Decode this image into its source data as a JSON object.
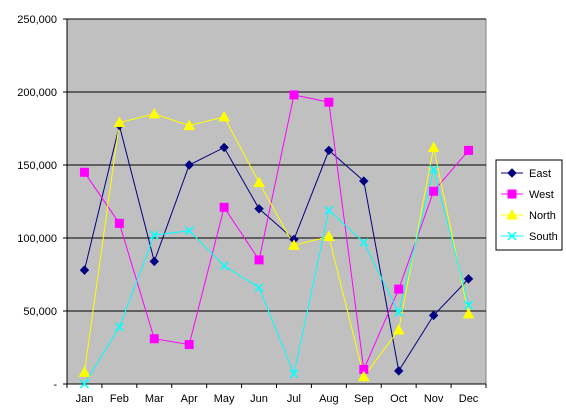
{
  "chart_data": {
    "type": "line",
    "title": "",
    "xlabel": "",
    "ylabel": "",
    "categories": [
      "Jan",
      "Feb",
      "Mar",
      "Apr",
      "May",
      "Jun",
      "Jul",
      "Aug",
      "Sep",
      "Oct",
      "Nov",
      "Dec"
    ],
    "ylim": [
      0,
      250000
    ],
    "y_ticks": [
      "-",
      "50,000",
      "100,000",
      "150,000",
      "200,000",
      "250,000"
    ],
    "y_tick_values": [
      0,
      50000,
      100000,
      150000,
      200000,
      250000
    ],
    "grid": true,
    "plot_background": "#c0c0c0",
    "legend": "right",
    "series": [
      {
        "name": "East",
        "color": "#000080",
        "marker": "diamond",
        "values": [
          78000,
          177000,
          84000,
          150000,
          162000,
          120000,
          99000,
          160000,
          139000,
          9000,
          47000,
          72000
        ]
      },
      {
        "name": "West",
        "color": "#ff00ff",
        "marker": "square",
        "values": [
          145000,
          110000,
          31000,
          27000,
          121000,
          85000,
          198000,
          193000,
          10000,
          65000,
          132000,
          160000
        ]
      },
      {
        "name": "North",
        "color": "#ffff00",
        "marker": "triangle",
        "values": [
          8000,
          179000,
          185000,
          177000,
          183000,
          138000,
          95000,
          101000,
          5000,
          37000,
          162000,
          48000
        ]
      },
      {
        "name": "South",
        "color": "#00ffff",
        "marker": "x",
        "values": [
          0,
          39000,
          102000,
          105000,
          81000,
          66000,
          7000,
          119000,
          97000,
          49000,
          147000,
          54000
        ]
      }
    ]
  }
}
